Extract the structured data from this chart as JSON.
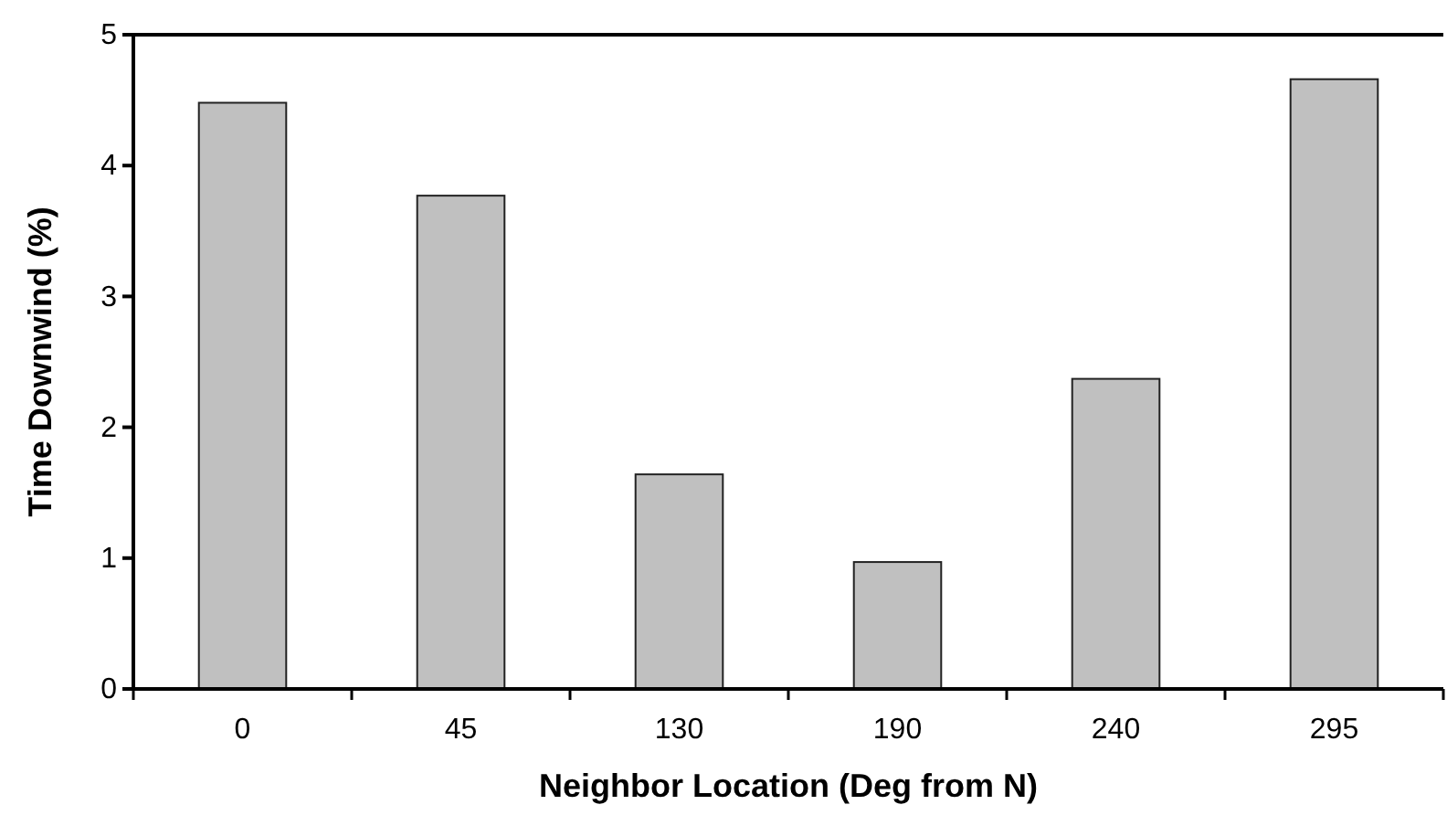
{
  "chart_data": {
    "type": "bar",
    "xlabel": "Neighbor Location (Deg from N)",
    "ylabel": "Time Downwind (%)",
    "categories": [
      "0",
      "45",
      "130",
      "190",
      "240",
      "295"
    ],
    "values": [
      4.48,
      3.77,
      1.64,
      0.97,
      2.37,
      4.66
    ],
    "color": "#c0c0c0",
    "ylim": [
      0,
      5
    ],
    "yticks": [
      0,
      1,
      2,
      3,
      4,
      5
    ],
    "grid": false
  }
}
